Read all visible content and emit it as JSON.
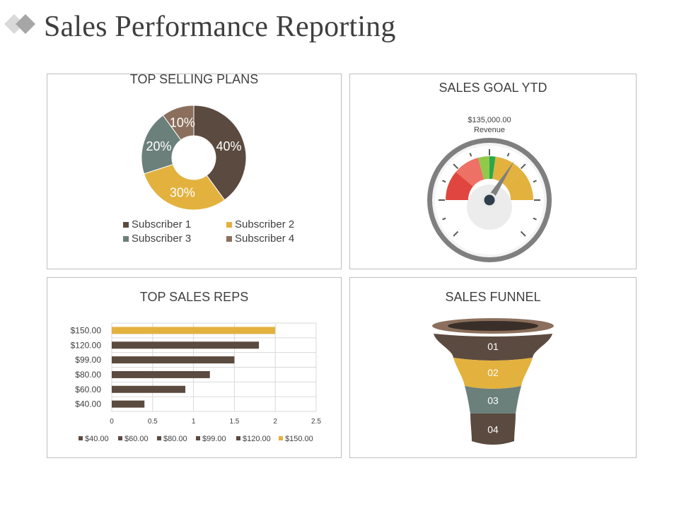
{
  "page": {
    "title": "Sales Performance Reporting"
  },
  "colors": {
    "dark_brown": "#5b4a3f",
    "gold": "#e3b13e",
    "slate": "#6b807b",
    "taupe": "#8b6f5c",
    "gauge_red": "#e0463f",
    "gauge_pink": "#ee7166",
    "gauge_lime": "#92c94a",
    "gauge_green": "#27a84b"
  },
  "chart_data": [
    {
      "id": "top_selling_plans",
      "type": "pie",
      "title": "TOP SELLING PLANS",
      "donut": true,
      "slices": [
        {
          "name": "Subscriber 1",
          "value": 40,
          "label": "40%",
          "color": "#5b4a3f"
        },
        {
          "name": "Subscriber 2",
          "value": 30,
          "label": "30%",
          "color": "#e3b13e"
        },
        {
          "name": "Subscriber 3",
          "value": 20,
          "label": "20%",
          "color": "#6b807b"
        },
        {
          "name": "Subscriber 4",
          "value": 10,
          "label": "10%",
          "color": "#8b6f5c"
        }
      ],
      "legend_position": "bottom"
    },
    {
      "id": "sales_goal_ytd",
      "type": "gauge",
      "title": "SALES GOAL YTD",
      "value_label": "$135,000.00",
      "sub_label": "Revenue",
      "needle_fraction": 0.62
    },
    {
      "id": "top_sales_reps",
      "type": "bar",
      "orientation": "horizontal",
      "title": "TOP SALES REPS",
      "categories": [
        "$150.00",
        "$120.00",
        "$99.00",
        "$80.00",
        "$60.00",
        "$40.00"
      ],
      "values": [
        2.0,
        1.8,
        1.5,
        1.2,
        0.9,
        0.4
      ],
      "colors": [
        "#e3b13e",
        "#5b4a3f",
        "#5b4a3f",
        "#5b4a3f",
        "#5b4a3f",
        "#5b4a3f"
      ],
      "xlim": [
        0,
        2.5
      ],
      "xticks": [
        "0",
        "0.5",
        "1",
        "1.5",
        "2",
        "2.5"
      ],
      "legend": [
        {
          "name": "$40.00",
          "color": "#5b4a3f"
        },
        {
          "name": "$60.00",
          "color": "#5b4a3f"
        },
        {
          "name": "$80.00",
          "color": "#5b4a3f"
        },
        {
          "name": "$99.00",
          "color": "#5b4a3f"
        },
        {
          "name": "$120.00",
          "color": "#5b4a3f"
        },
        {
          "name": "$150.00",
          "color": "#e3b13e"
        }
      ],
      "legend_position": "bottom",
      "grid": true
    },
    {
      "id": "sales_funnel",
      "type": "funnel",
      "title": "SALES FUNNEL",
      "stages": [
        {
          "label": "01",
          "color": "#5b4a3f"
        },
        {
          "label": "02",
          "color": "#e3b13e"
        },
        {
          "label": "03",
          "color": "#6b807b"
        },
        {
          "label": "04",
          "color": "#5b4a3f"
        }
      ]
    }
  ]
}
